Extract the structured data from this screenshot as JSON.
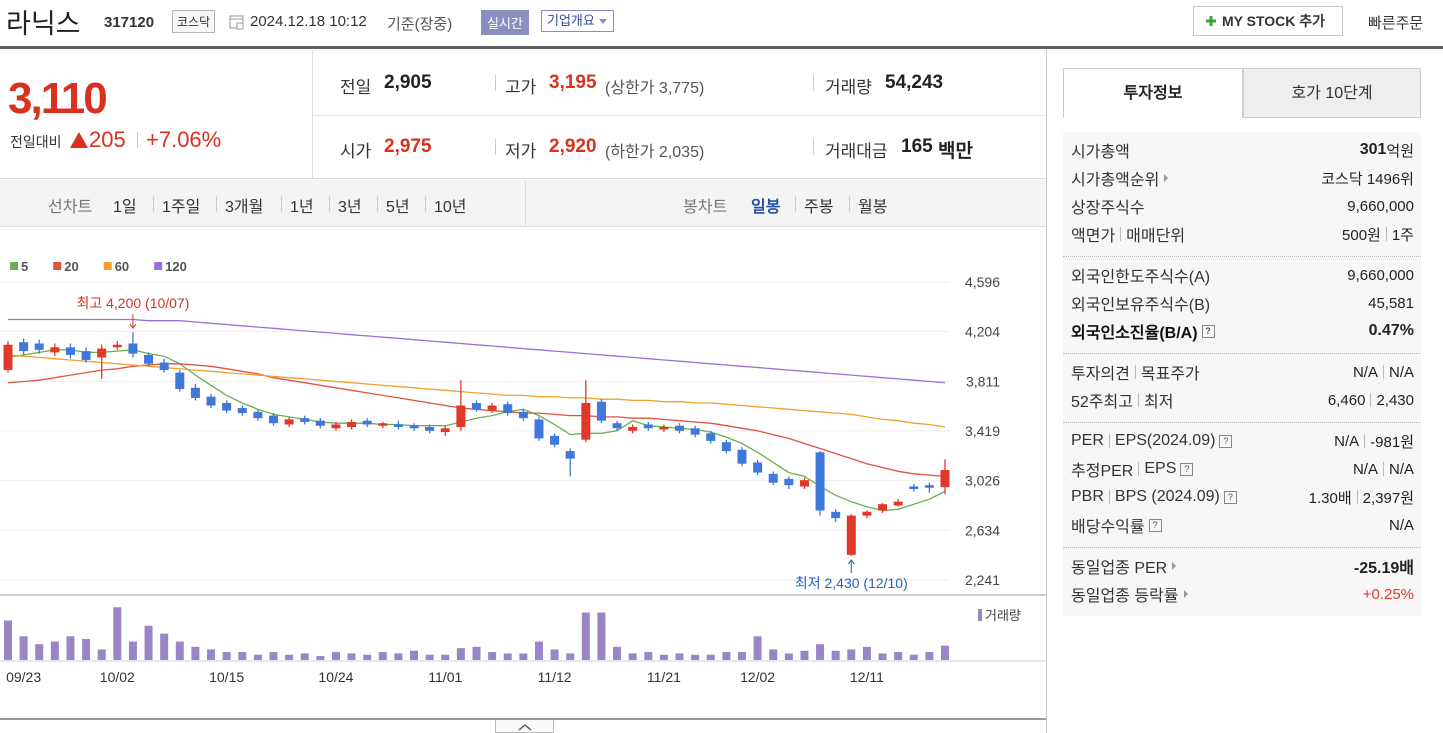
{
  "header": {
    "name": "라닉스",
    "code": "317120",
    "market": "코스닥",
    "datetime": "2024.12.18 10:12",
    "basis": "기준(장중)",
    "realtime": "실시간",
    "company_info": "기업개요",
    "my_stock": "MY STOCK 추가",
    "quick_order": "빠른주문"
  },
  "quote": {
    "price": "3,110",
    "change_label": "전일대비",
    "change": "205",
    "change_pct": "+7.06%",
    "prev_label": "전일",
    "prev": "2,905",
    "high_label": "고가",
    "high": "3,195",
    "high_limit": "(상한가 3,775)",
    "volume_label": "거래량",
    "volume": "54,243",
    "open_label": "시가",
    "open": "2,975",
    "low_label": "저가",
    "low": "2,920",
    "low_limit": "(하한가 2,035)",
    "amount_label": "거래대금",
    "amount": "165",
    "amount_unit": "백만"
  },
  "toolbar": {
    "line_label": "선차트",
    "line_periods": [
      "1일",
      "1주일",
      "3개월",
      "1년",
      "3년",
      "5년",
      "10년"
    ],
    "candle_label": "봉차트",
    "candle_periods": [
      "일봉",
      "주봉",
      "월봉"
    ]
  },
  "chart_data": {
    "type": "candlestick",
    "categories": [
      null,
      "09/23",
      null,
      null,
      null,
      null,
      null,
      "10/02",
      null,
      null,
      null,
      null,
      null,
      null,
      "10/15",
      null,
      null,
      null,
      null,
      null,
      null,
      "10/24",
      null,
      null,
      null,
      null,
      null,
      null,
      "11/01",
      null,
      null,
      null,
      null,
      null,
      null,
      "11/12",
      null,
      null,
      null,
      null,
      null,
      null,
      "11/21",
      null,
      null,
      null,
      null,
      null,
      "12/02",
      null,
      null,
      null,
      null,
      null,
      null,
      "12/11",
      null,
      null,
      null,
      null,
      null
    ],
    "open": [
      3900,
      4120,
      4110,
      4040,
      4080,
      4050,
      4000,
      4080,
      4110,
      4020,
      3960,
      3880,
      3760,
      3690,
      3640,
      3600,
      3570,
      3540,
      3470,
      3520,
      3500,
      3440,
      3450,
      3500,
      3460,
      3470,
      3460,
      3450,
      3410,
      3450,
      3640,
      3580,
      3630,
      3570,
      3510,
      3380,
      3260,
      3350,
      3650,
      3480,
      3420,
      3470,
      3430,
      3460,
      3440,
      3400,
      3330,
      3270,
      3170,
      3080,
      3040,
      2980,
      3250,
      2780,
      2440,
      2750,
      2790,
      2830,
      2980,
      2990,
      2975
    ],
    "high": [
      4130,
      4150,
      4140,
      4110,
      4110,
      4080,
      4100,
      4130,
      4200,
      4040,
      3990,
      3900,
      3790,
      3710,
      3660,
      3620,
      3590,
      3560,
      3530,
      3540,
      3520,
      3490,
      3510,
      3520,
      3490,
      3500,
      3480,
      3470,
      3460,
      3820,
      3660,
      3640,
      3650,
      3590,
      3530,
      3400,
      3280,
      3820,
      3670,
      3500,
      3470,
      3490,
      3470,
      3480,
      3460,
      3420,
      3350,
      3290,
      3190,
      3100,
      3060,
      3050,
      3260,
      2800,
      2760,
      2790,
      2850,
      2880,
      3000,
      3010,
      3195
    ],
    "low": [
      3880,
      4020,
      4030,
      4010,
      3990,
      3960,
      3830,
      4060,
      4000,
      3930,
      3880,
      3730,
      3660,
      3600,
      3560,
      3540,
      3500,
      3460,
      3450,
      3470,
      3440,
      3420,
      3430,
      3450,
      3440,
      3430,
      3420,
      3400,
      3380,
      3420,
      3570,
      3560,
      3540,
      3500,
      3340,
      3290,
      3060,
      3330,
      3480,
      3420,
      3400,
      3420,
      3410,
      3400,
      3370,
      3320,
      3240,
      3140,
      3070,
      2990,
      2960,
      2960,
      2750,
      2700,
      2430,
      2730,
      2770,
      2820,
      2940,
      2930,
      2920
    ],
    "close": [
      4100,
      4050,
      4060,
      4080,
      4020,
      3980,
      4070,
      4100,
      4030,
      3950,
      3900,
      3750,
      3680,
      3620,
      3580,
      3560,
      3520,
      3480,
      3510,
      3490,
      3460,
      3470,
      3490,
      3470,
      3480,
      3450,
      3440,
      3420,
      3440,
      3620,
      3590,
      3620,
      3560,
      3520,
      3360,
      3310,
      3200,
      3640,
      3500,
      3440,
      3450,
      3440,
      3450,
      3420,
      3390,
      3340,
      3260,
      3160,
      3090,
      3010,
      2990,
      3030,
      2790,
      2730,
      2750,
      2780,
      2840,
      2860,
      2960,
      2970,
      3110
    ],
    "volume": [
      150000,
      90000,
      60000,
      70000,
      90000,
      80000,
      40000,
      200000,
      70000,
      130000,
      100000,
      70000,
      50000,
      40000,
      30000,
      30000,
      20000,
      30000,
      20000,
      25000,
      15000,
      30000,
      25000,
      20000,
      30000,
      25000,
      35000,
      20000,
      20000,
      45000,
      50000,
      30000,
      25000,
      25000,
      70000,
      40000,
      25000,
      180000,
      180000,
      50000,
      25000,
      30000,
      20000,
      25000,
      20000,
      20000,
      30000,
      30000,
      90000,
      40000,
      25000,
      35000,
      60000,
      35000,
      40000,
      50000,
      25000,
      30000,
      20000,
      30000,
      54243
    ],
    "up_color": "#e0392b",
    "down_color": "#3f78d8",
    "volume_color": "#9a86c6",
    "ma": [
      {
        "name": "5",
        "color": "#6ab04c",
        "values": [
          4000,
          4020,
          4040,
          4060,
          4060,
          4040,
          4040,
          4050,
          4060,
          4030,
          4010,
          3950,
          3860,
          3780,
          3700,
          3640,
          3590,
          3550,
          3530,
          3510,
          3490,
          3480,
          3480,
          3480,
          3470,
          3470,
          3460,
          3460,
          3460,
          3490,
          3520,
          3540,
          3570,
          3590,
          3540,
          3470,
          3390,
          3400,
          3400,
          3420,
          3500,
          3460,
          3450,
          3440,
          3430,
          3410,
          3370,
          3320,
          3250,
          3170,
          3090,
          3060,
          2980,
          2910,
          2860,
          2820,
          2790,
          2800,
          2840,
          2880,
          2940
        ]
      },
      {
        "name": "20",
        "color": "#e0533f",
        "values": [
          3800,
          3810,
          3820,
          3840,
          3860,
          3880,
          3900,
          3910,
          3930,
          3940,
          3950,
          3950,
          3940,
          3930,
          3910,
          3890,
          3870,
          3840,
          3820,
          3800,
          3780,
          3760,
          3740,
          3720,
          3700,
          3680,
          3660,
          3640,
          3620,
          3600,
          3590,
          3580,
          3570,
          3560,
          3560,
          3550,
          3540,
          3540,
          3530,
          3530,
          3520,
          3520,
          3510,
          3500,
          3490,
          3480,
          3460,
          3440,
          3420,
          3390,
          3360,
          3320,
          3280,
          3240,
          3200,
          3160,
          3130,
          3100,
          3080,
          3070,
          3060
        ]
      },
      {
        "name": "60",
        "color": "#f0a030",
        "values": [
          4020,
          4010,
          4000,
          3990,
          3980,
          3970,
          3960,
          3950,
          3940,
          3930,
          3920,
          3910,
          3900,
          3890,
          3880,
          3870,
          3860,
          3850,
          3840,
          3830,
          3820,
          3810,
          3800,
          3790,
          3780,
          3770,
          3760,
          3750,
          3740,
          3730,
          3720,
          3710,
          3700,
          3700,
          3690,
          3690,
          3680,
          3680,
          3670,
          3670,
          3660,
          3660,
          3650,
          3650,
          3640,
          3640,
          3630,
          3620,
          3610,
          3600,
          3590,
          3580,
          3570,
          3560,
          3550,
          3530,
          3510,
          3500,
          3480,
          3470,
          3450
        ]
      },
      {
        "name": "120",
        "color": "#9b6fd6",
        "values": [
          4300,
          4300,
          4300,
          4300,
          4300,
          4300,
          4300,
          4300,
          4300,
          4290,
          4290,
          4290,
          4280,
          4270,
          4260,
          4250,
          4240,
          4230,
          4220,
          4210,
          4200,
          4190,
          4180,
          4170,
          4160,
          4150,
          4140,
          4130,
          4120,
          4110,
          4100,
          4090,
          4080,
          4070,
          4060,
          4050,
          4040,
          4030,
          4020,
          4010,
          4000,
          3990,
          3980,
          3970,
          3960,
          3950,
          3940,
          3930,
          3920,
          3910,
          3900,
          3890,
          3880,
          3870,
          3860,
          3850,
          3840,
          3830,
          3820,
          3810,
          3800
        ]
      }
    ],
    "ylim": [
      2146,
      4691
    ],
    "yticks": [
      {
        "value": 4596,
        "label": "4,596"
      },
      {
        "value": 4204,
        "label": "4,204"
      },
      {
        "value": 3811,
        "label": "3,811"
      },
      {
        "value": 3419,
        "label": "3,419"
      },
      {
        "value": 3026,
        "label": "3,026"
      },
      {
        "value": 2634,
        "label": "2,634"
      },
      {
        "value": 2241,
        "label": "2,241"
      }
    ],
    "vlim": [
      0,
      220000
    ],
    "volume_label": "거래량",
    "high_label": "최고 4,200 (10/07)",
    "low_label": "최저 2,430 (12/10)",
    "grid": true
  },
  "info": {
    "tabs": [
      "투자정보",
      "호가 10단계"
    ],
    "groups": [
      [
        {
          "label": [
            "시가총액"
          ],
          "value": [
            "301"
          ],
          "unit": "억원",
          "strong_value": true
        },
        {
          "label": [
            "시가총액순위"
          ],
          "arrow": true,
          "value": [
            "코스닥 1496위"
          ]
        },
        {
          "label": [
            "상장주식수"
          ],
          "value": [
            "9,660,000"
          ]
        },
        {
          "label": [
            "액면가",
            "매매단위"
          ],
          "value": [
            "500원",
            "1주"
          ]
        }
      ],
      [
        {
          "label": [
            "외국인한도주식수(A)"
          ],
          "value": [
            "9,660,000"
          ]
        },
        {
          "label": [
            "외국인보유주식수(B)"
          ],
          "value": [
            "45,581"
          ]
        },
        {
          "label": [
            "외국인소진율(B/A)"
          ],
          "help": true,
          "value": [
            "0.47%"
          ],
          "strong_label": true,
          "strong_value": true
        }
      ],
      [
        {
          "label": [
            "투자의견",
            "목표주가"
          ],
          "value": [
            "N/A",
            "N/A"
          ]
        },
        {
          "label": [
            "52주최고",
            "최저"
          ],
          "value": [
            "6,460",
            "2,430"
          ]
        }
      ],
      [
        {
          "label": [
            "PER",
            "EPS(2024.09)"
          ],
          "help": true,
          "value": [
            "N/A",
            "-981원"
          ]
        },
        {
          "label": [
            "추정PER",
            "EPS"
          ],
          "help": true,
          "value": [
            "N/A",
            "N/A"
          ]
        },
        {
          "label": [
            "PBR",
            "BPS (2024.09)"
          ],
          "help": true,
          "value": [
            "1.30배",
            "2,397원"
          ]
        },
        {
          "label": [
            "배당수익률"
          ],
          "help": true,
          "value": [
            "N/A"
          ]
        }
      ],
      [
        {
          "label": [
            "동일업종 PER"
          ],
          "arrow": true,
          "value": [
            "-25.19배"
          ],
          "strong_value": true
        },
        {
          "label": [
            "동일업종 등락률"
          ],
          "arrow": true,
          "value": [
            "+0.25%"
          ],
          "color": "#e0392b"
        }
      ]
    ]
  }
}
